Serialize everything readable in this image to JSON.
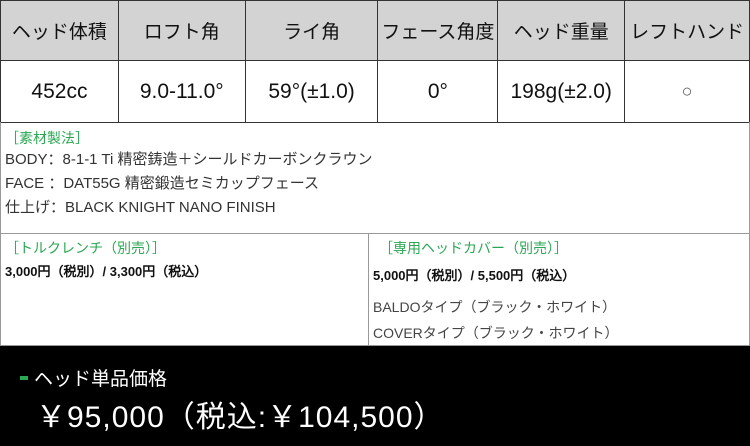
{
  "spec_table": {
    "headers": [
      "ヘッド体積",
      "ロフト角",
      "ライ角",
      "フェース角度",
      "ヘッド重量",
      "レフトハンド"
    ],
    "values": [
      "452cc",
      "9.0-11.0°",
      "59°(±1.0)",
      "0°",
      "198g(±2.0)",
      "○"
    ]
  },
  "materials": {
    "title": "［素材製法］",
    "lines": [
      "BODY：8-1-1 Ti 精密鋳造＋シールドカーボンクラウン",
      "FACE ：DAT55G 精密鍛造セミカップフェース",
      "仕上げ：BLACK KNIGHT NANO FINISH"
    ]
  },
  "torque_wrench": {
    "title": "［トルクレンチ（別売）］",
    "price": "3,000円（税別）/ 3,300円（税込）"
  },
  "head_cover": {
    "title": "［専用ヘッドカバー（別売）］",
    "price": "5,000円（税別）/ 5,500円（税込）",
    "types": [
      "BALDOタイプ（ブラック・ホワイト）",
      "COVERタイプ（ブラック・ホワイト）"
    ]
  },
  "price": {
    "label": "ヘッド単品価格",
    "value": "￥95,000（税込:￥104,500）"
  },
  "colors": {
    "accent": "#2aa752",
    "header_bg": "#d3d3d3",
    "price_bg": "#000000"
  }
}
